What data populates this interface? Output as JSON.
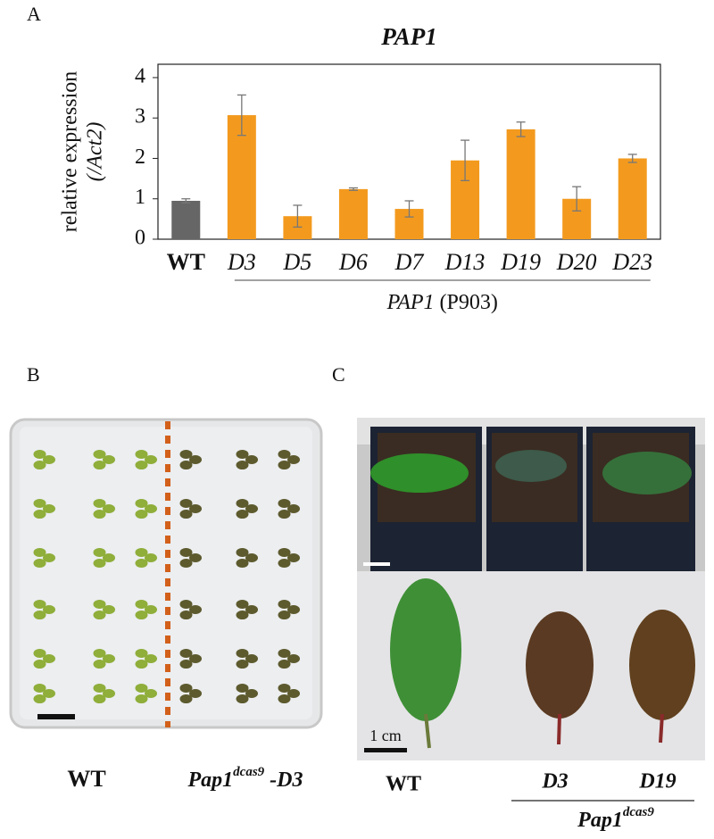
{
  "panel_labels": [
    "A",
    "B",
    "C"
  ],
  "chart_data": {
    "type": "bar",
    "title": "PAP1",
    "ylabel": [
      "relative expression",
      "(/Act2)"
    ],
    "categories": [
      "WT",
      "D3",
      "D5",
      "D6",
      "D7",
      "D13",
      "D19",
      "D20",
      "D23"
    ],
    "values": [
      0.95,
      3.07,
      0.57,
      1.24,
      0.75,
      1.95,
      2.72,
      1.0,
      2.0
    ],
    "errors": [
      0.05,
      0.5,
      0.27,
      0.03,
      0.2,
      0.5,
      0.18,
      0.3,
      0.1
    ],
    "colors": [
      "#666666",
      "#f39a1e",
      "#f39a1e",
      "#f39a1e",
      "#f39a1e",
      "#f39a1e",
      "#f39a1e",
      "#f39a1e",
      "#f39a1e"
    ],
    "ylim": [
      0,
      4.33
    ],
    "yticks": [
      0,
      1,
      2,
      3,
      4
    ],
    "group_label": [
      "PAP1",
      "(P903)"
    ]
  },
  "panel_b": {
    "captions": [
      "WT",
      {
        "base": "Pap1",
        "sup": "dcas9",
        "suffix": " -D3"
      }
    ]
  },
  "panel_c": {
    "scale_bar": "1 cm",
    "captions": [
      "WT",
      "D3",
      "D19"
    ],
    "group_caption": {
      "base": "Pap1",
      "sup": "dcas9"
    }
  }
}
